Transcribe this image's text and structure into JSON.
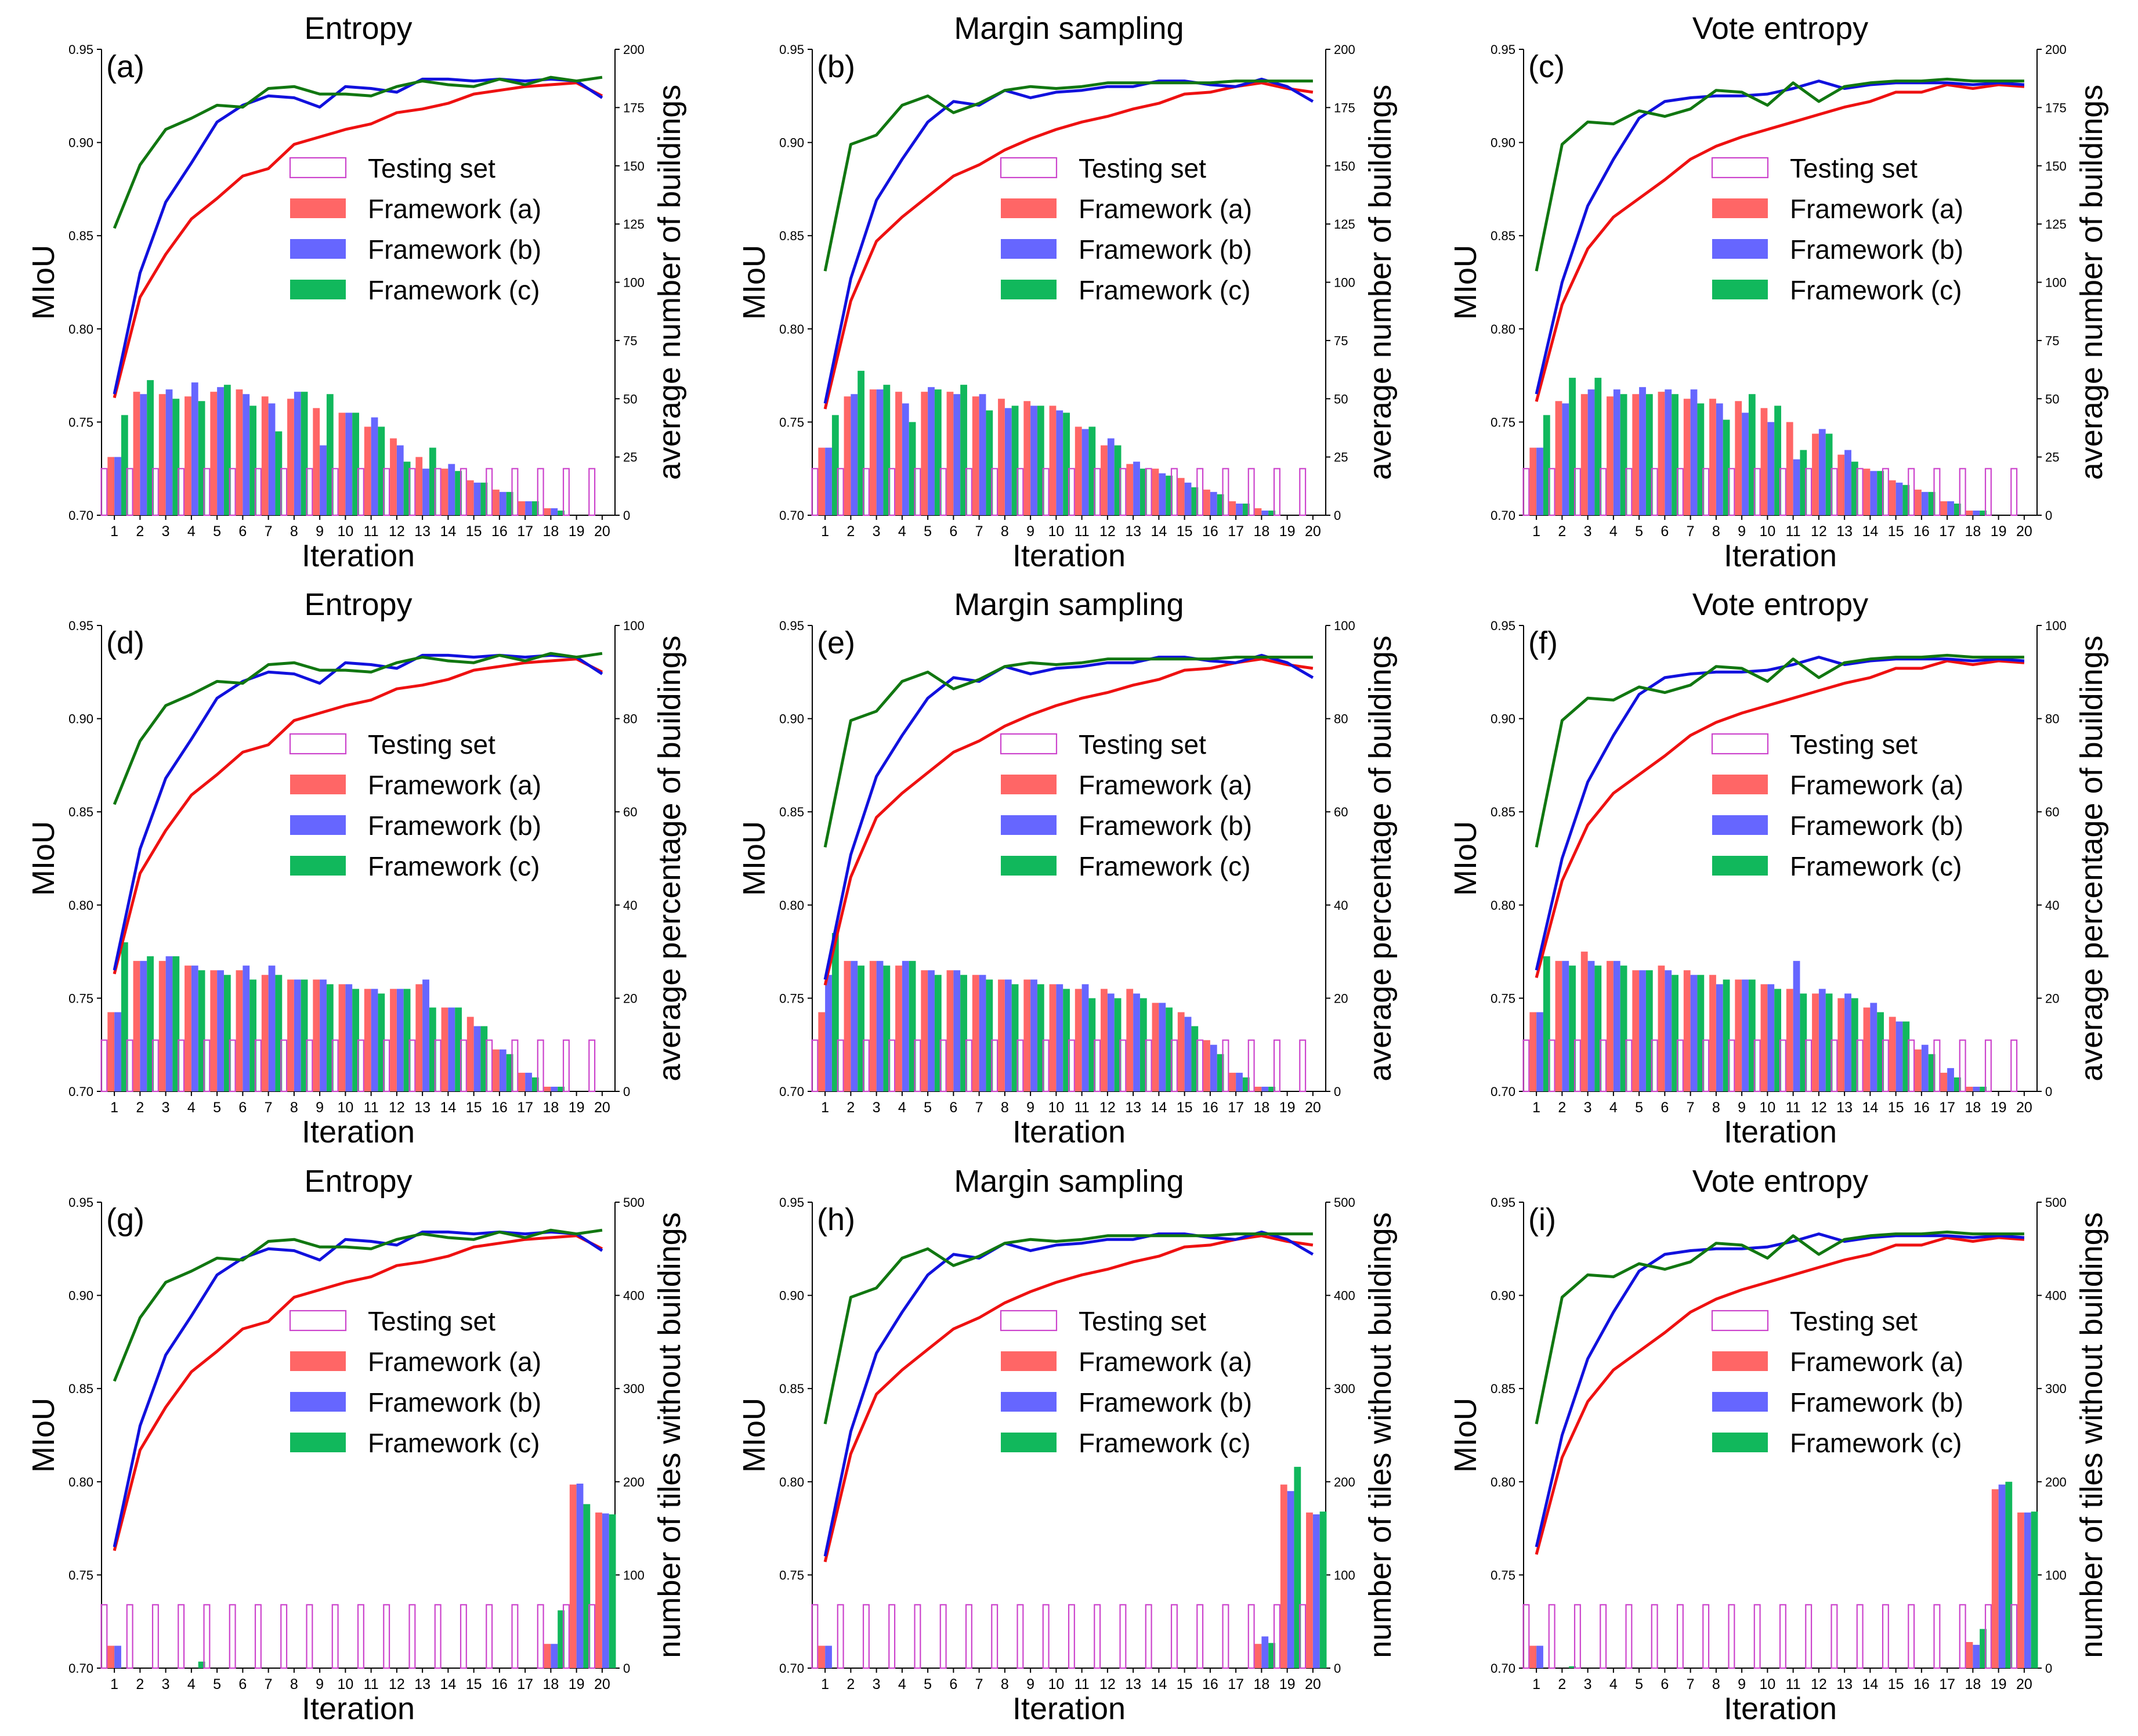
{
  "chart_data": {
    "type": "bar+line",
    "iterations": [
      1,
      2,
      3,
      4,
      5,
      6,
      7,
      8,
      9,
      10,
      11,
      12,
      13,
      14,
      15,
      16,
      17,
      18,
      19,
      20
    ],
    "xlabel": "Iteration",
    "ylabel_left": "MIoU",
    "ylim_left": [
      0.7,
      0.95
    ],
    "yticks_left": [
      "0.70",
      "0.75",
      "0.80",
      "0.85",
      "0.90",
      "0.95"
    ],
    "legend": [
      "Testing set",
      "Framework (a)",
      "Framework (b)",
      "Framework (c)"
    ],
    "colors": {
      "testing": "#cc44cc",
      "bar_a": "#ff6666",
      "bar_b": "#6666ff",
      "bar_c": "#11b85c",
      "line_a": "#ee1111",
      "line_b": "#1111dd",
      "line_c": "#117711"
    },
    "miou": {
      "Entropy": {
        "a": [
          0.763,
          0.817,
          0.84,
          0.859,
          0.87,
          0.882,
          0.886,
          0.899,
          0.903,
          0.907,
          0.91,
          0.916,
          0.918,
          0.921,
          0.926,
          0.928,
          0.93,
          0.931,
          0.932,
          0.925
        ],
        "b": [
          0.765,
          0.83,
          0.868,
          0.889,
          0.911,
          0.92,
          0.925,
          0.924,
          0.919,
          0.93,
          0.929,
          0.927,
          0.934,
          0.934,
          0.933,
          0.934,
          0.933,
          0.934,
          0.933,
          0.924
        ],
        "c": [
          0.854,
          0.888,
          0.907,
          0.913,
          0.92,
          0.919,
          0.929,
          0.93,
          0.926,
          0.926,
          0.925,
          0.93,
          0.933,
          0.931,
          0.93,
          0.934,
          0.931,
          0.935,
          0.933,
          0.935
        ]
      },
      "Margin sampling": {
        "a": [
          0.757,
          0.815,
          0.847,
          0.86,
          0.871,
          0.882,
          0.888,
          0.896,
          0.902,
          0.907,
          0.911,
          0.914,
          0.918,
          0.921,
          0.926,
          0.927,
          0.93,
          0.932,
          0.929,
          0.927
        ],
        "b": [
          0.76,
          0.827,
          0.869,
          0.891,
          0.911,
          0.922,
          0.92,
          0.928,
          0.924,
          0.927,
          0.928,
          0.93,
          0.93,
          0.933,
          0.933,
          0.931,
          0.93,
          0.934,
          0.93,
          0.922
        ],
        "c": [
          0.831,
          0.899,
          0.904,
          0.92,
          0.925,
          0.916,
          0.921,
          0.928,
          0.93,
          0.929,
          0.93,
          0.932,
          0.932,
          0.932,
          0.932,
          0.932,
          0.933,
          0.933,
          0.933,
          0.933
        ]
      },
      "Vote entropy": {
        "a": [
          0.761,
          0.813,
          0.843,
          0.86,
          0.87,
          0.88,
          0.891,
          0.898,
          0.903,
          0.907,
          0.911,
          0.915,
          0.919,
          0.922,
          0.927,
          0.927,
          0.931,
          0.929,
          0.931,
          0.93
        ],
        "b": [
          0.765,
          0.825,
          0.866,
          0.891,
          0.913,
          0.922,
          0.924,
          0.925,
          0.925,
          0.926,
          0.929,
          0.933,
          0.929,
          0.931,
          0.932,
          0.932,
          0.932,
          0.931,
          0.932,
          0.931
        ],
        "c": [
          0.831,
          0.899,
          0.911,
          0.91,
          0.917,
          0.914,
          0.918,
          0.928,
          0.927,
          0.92,
          0.932,
          0.922,
          0.93,
          0.932,
          0.933,
          0.933,
          0.934,
          0.933,
          0.933,
          0.933
        ]
      }
    },
    "rows": [
      {
        "ylabel_right": "average number of buildings",
        "ylim_right": [
          0,
          200
        ],
        "yticks_right": [
          "0",
          "25",
          "50",
          "75",
          "100",
          "125",
          "150",
          "175",
          "200"
        ],
        "testing": 20,
        "panels": [
          {
            "label": "(a)",
            "title": "Entropy",
            "a": [
              25,
              53,
              52,
              51,
              53,
              54,
              51,
              50,
              46,
              44,
              38,
              33,
              25,
              20,
              15,
              11,
              6,
              3,
              0,
              0
            ],
            "b": [
              25,
              52,
              54,
              57,
              55,
              52,
              48,
              53,
              30,
              44,
              42,
              30,
              20,
              22,
              14,
              10,
              6,
              3,
              0,
              0
            ],
            "c": [
              43,
              58,
              50,
              49,
              56,
              47,
              36,
              53,
              52,
              44,
              38,
              23,
              29,
              19,
              14,
              10,
              6,
              2,
              0,
              0
            ]
          },
          {
            "label": "(b)",
            "title": "Margin sampling",
            "a": [
              29,
              51,
              54,
              53,
              53,
              53,
              51,
              50,
              49,
              47,
              38,
              30,
              22,
              20,
              16,
              11,
              6,
              3,
              0,
              0
            ],
            "b": [
              29,
              52,
              54,
              48,
              55,
              52,
              52,
              46,
              47,
              45,
              37,
              33,
              23,
              18,
              14,
              10,
              5,
              2,
              0,
              0
            ],
            "c": [
              43,
              62,
              56,
              40,
              54,
              56,
              45,
              47,
              47,
              44,
              38,
              30,
              20,
              17,
              12,
              9,
              5,
              2,
              0,
              0
            ]
          },
          {
            "label": "(c)",
            "title": "Vote entropy",
            "a": [
              29,
              49,
              52,
              51,
              52,
              53,
              50,
              50,
              49,
              46,
              40,
              35,
              26,
              20,
              15,
              11,
              6,
              2,
              0,
              0
            ],
            "b": [
              29,
              48,
              54,
              54,
              55,
              54,
              54,
              48,
              44,
              40,
              24,
              37,
              28,
              19,
              14,
              10,
              6,
              2,
              0,
              0
            ],
            "c": [
              43,
              59,
              59,
              52,
              52,
              52,
              48,
              41,
              52,
              47,
              28,
              35,
              23,
              19,
              13,
              10,
              5,
              2,
              0,
              0
            ]
          }
        ]
      },
      {
        "ylabel_right": "average percentage of buildings",
        "ylim_right": [
          0,
          100
        ],
        "yticks_right": [
          "0",
          "20",
          "40",
          "60",
          "80",
          "100"
        ],
        "testing": 11,
        "panels": [
          {
            "label": "(d)",
            "title": "Entropy",
            "a": [
              17,
              28,
              28,
              27,
              26,
              26,
              25,
              24,
              24,
              23,
              22,
              22,
              23,
              18,
              16,
              9,
              4,
              1,
              0,
              0
            ],
            "b": [
              17,
              28,
              29,
              27,
              26,
              27,
              27,
              24,
              24,
              23,
              22,
              22,
              24,
              18,
              14,
              9,
              4,
              1,
              0,
              0
            ],
            "c": [
              32,
              29,
              29,
              26,
              25,
              24,
              25,
              24,
              23,
              22,
              21,
              22,
              18,
              18,
              14,
              8,
              3,
              1,
              0,
              0
            ]
          },
          {
            "label": "(e)",
            "title": "Margin sampling",
            "a": [
              17,
              28,
              28,
              27,
              26,
              26,
              25,
              24,
              24,
              23,
              22,
              22,
              22,
              19,
              17,
              11,
              4,
              1,
              0,
              0
            ],
            "b": [
              25,
              28,
              28,
              28,
              26,
              26,
              25,
              24,
              24,
              23,
              23,
              21,
              21,
              19,
              16,
              10,
              4,
              1,
              0,
              0
            ],
            "c": [
              34,
              27,
              27,
              28,
              25,
              25,
              24,
              23,
              23,
              22,
              20,
              20,
              20,
              18,
              14,
              8,
              3,
              1,
              0,
              0
            ]
          },
          {
            "label": "(f)",
            "title": "Vote entropy",
            "a": [
              17,
              28,
              30,
              28,
              26,
              27,
              26,
              25,
              24,
              23,
              22,
              21,
              20,
              18,
              16,
              9,
              4,
              1,
              0,
              0
            ],
            "b": [
              17,
              28,
              28,
              28,
              26,
              26,
              25,
              23,
              24,
              23,
              28,
              22,
              21,
              19,
              15,
              10,
              5,
              1,
              0,
              0
            ],
            "c": [
              29,
              27,
              27,
              27,
              26,
              25,
              25,
              24,
              24,
              22,
              21,
              21,
              20,
              17,
              15,
              8,
              3,
              1,
              0,
              0
            ]
          }
        ]
      },
      {
        "ylabel_right": "number of tiles without buildings",
        "ylim_right": [
          0,
          500
        ],
        "yticks_right": [
          "0",
          "100",
          "200",
          "300",
          "400",
          "500"
        ],
        "testing": 68,
        "panels": [
          {
            "label": "(g)",
            "title": "Entropy",
            "a": [
              24,
              0,
              0,
              0,
              0,
              0,
              0,
              0,
              0,
              0,
              0,
              0,
              0,
              0,
              0,
              0,
              0,
              26,
              197,
              167
            ],
            "b": [
              24,
              0,
              0,
              0,
              0,
              0,
              0,
              0,
              0,
              0,
              0,
              0,
              0,
              0,
              0,
              0,
              0,
              26,
              198,
              166
            ],
            "c": [
              0,
              0,
              0,
              7,
              0,
              0,
              0,
              0,
              0,
              0,
              0,
              0,
              0,
              0,
              0,
              0,
              0,
              62,
              176,
              165
            ]
          },
          {
            "label": "(h)",
            "title": "Margin sampling",
            "a": [
              24,
              0,
              0,
              0,
              0,
              0,
              0,
              0,
              0,
              0,
              0,
              0,
              0,
              0,
              0,
              0,
              0,
              26,
              197,
              167
            ],
            "b": [
              24,
              0,
              0,
              0,
              0,
              0,
              0,
              0,
              0,
              0,
              0,
              0,
              0,
              0,
              0,
              0,
              0,
              34,
              190,
              165
            ],
            "c": [
              0,
              0,
              0,
              0,
              0,
              0,
              0,
              0,
              0,
              0,
              0,
              0,
              0,
              0,
              0,
              0,
              0,
              27,
              216,
              168
            ]
          },
          {
            "label": "(i)",
            "title": "Vote entropy",
            "a": [
              24,
              0,
              0,
              0,
              0,
              0,
              0,
              0,
              0,
              0,
              0,
              0,
              0,
              0,
              0,
              0,
              0,
              28,
              192,
              167
            ],
            "b": [
              24,
              0,
              0,
              0,
              0,
              0,
              0,
              0,
              0,
              0,
              0,
              0,
              0,
              0,
              0,
              0,
              0,
              25,
              197,
              167
            ],
            "c": [
              0,
              2,
              0,
              0,
              0,
              0,
              0,
              0,
              0,
              0,
              0,
              0,
              0,
              0,
              0,
              0,
              0,
              42,
              200,
              168
            ]
          }
        ]
      }
    ]
  }
}
